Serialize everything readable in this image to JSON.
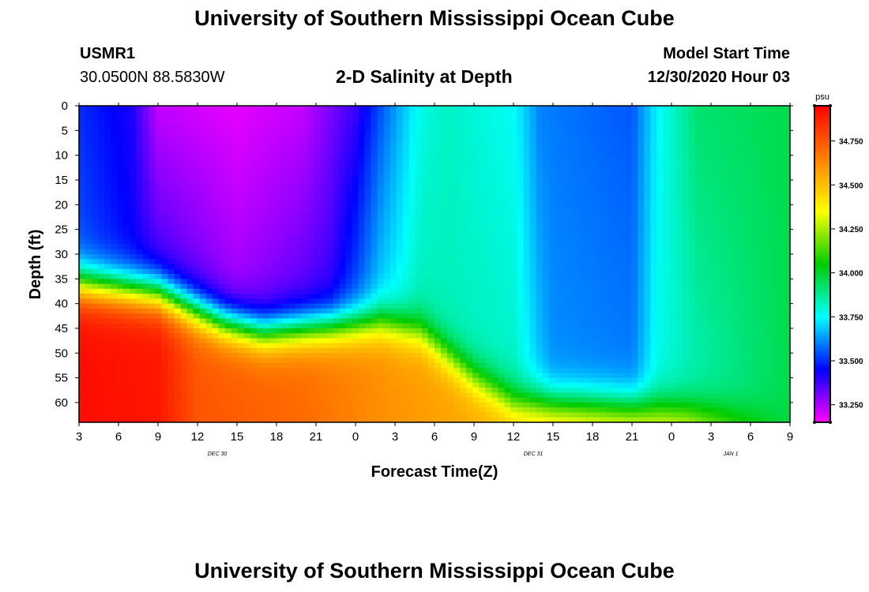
{
  "header": {
    "title": "University of Southern Mississippi Ocean Cube",
    "footer_title": "University of Southern Mississippi Ocean Cube",
    "station_id": "USMR1",
    "station_coords": "30.0500N 88.5830W",
    "model_start_label": "Model Start Time",
    "model_start_value": "12/30/2020 Hour 03"
  },
  "chart_data": {
    "type": "heatmap",
    "title": "2-D Salinity at Depth",
    "xlabel": "Forecast Time(Z)",
    "ylabel": "Depth (ft)",
    "x_tick_labels": [
      "3",
      "6",
      "9",
      "12",
      "15",
      "18",
      "21",
      "0",
      "3",
      "6",
      "9",
      "12",
      "15",
      "18",
      "21",
      "0",
      "3",
      "6",
      "9"
    ],
    "date_labels": [
      {
        "text": "DEC 30",
        "after_tick": 3
      },
      {
        "text": "DEC 31",
        "after_tick": 11
      },
      {
        "text": "JAN 1",
        "after_tick": 16
      }
    ],
    "x_range_hours": [
      3,
      57
    ],
    "y_ticks": [
      0,
      5,
      10,
      15,
      20,
      25,
      30,
      35,
      40,
      45,
      50,
      55,
      60
    ],
    "ylim": [
      0,
      64
    ],
    "colorbar": {
      "unit": "psu",
      "min": 33.15,
      "max": 34.95,
      "ticks": [
        "33.250",
        "33.500",
        "33.750",
        "34.000",
        "34.250",
        "34.500",
        "34.750"
      ],
      "tick_values": [
        33.25,
        33.5,
        33.75,
        34.0,
        34.25,
        34.5,
        34.75
      ]
    },
    "model": {
      "surface_salinity": [
        {
          "hour": 3,
          "value": 33.5
        },
        {
          "hour": 7,
          "value": 33.42
        },
        {
          "hour": 9,
          "value": 33.22
        },
        {
          "hour": 15,
          "value": 33.18
        },
        {
          "hour": 20,
          "value": 33.22
        },
        {
          "hour": 24,
          "value": 33.38
        },
        {
          "hour": 26,
          "value": 33.55
        },
        {
          "hour": 29,
          "value": 33.78
        },
        {
          "hour": 31,
          "value": 33.82
        },
        {
          "hour": 36,
          "value": 33.76
        },
        {
          "hour": 38,
          "value": 33.6
        },
        {
          "hour": 45,
          "value": 33.55
        },
        {
          "hour": 47,
          "value": 33.75
        },
        {
          "hour": 50,
          "value": 33.92
        },
        {
          "hour": 57,
          "value": 33.96
        }
      ],
      "surface_salinity_lower": [
        {
          "hour": 3,
          "value": 33.55
        },
        {
          "hour": 9,
          "value": 33.4
        },
        {
          "hour": 15,
          "value": 33.28
        },
        {
          "hour": 22,
          "value": 33.4
        },
        {
          "hour": 26,
          "value": 33.72
        },
        {
          "hour": 29,
          "value": 33.84
        },
        {
          "hour": 36,
          "value": 33.82
        },
        {
          "hour": 39,
          "value": 33.62
        },
        {
          "hour": 45,
          "value": 33.6
        },
        {
          "hour": 47,
          "value": 33.78
        },
        {
          "hour": 57,
          "value": 33.96
        }
      ],
      "halocline_depth_ft": [
        {
          "hour": 3,
          "value": 36
        },
        {
          "hour": 9,
          "value": 38
        },
        {
          "hour": 14,
          "value": 44
        },
        {
          "hour": 17,
          "value": 46
        },
        {
          "hour": 21,
          "value": 45
        },
        {
          "hour": 26,
          "value": 44
        },
        {
          "hour": 29,
          "value": 46
        },
        {
          "hour": 33,
          "value": 55
        },
        {
          "hour": 36,
          "value": 60
        },
        {
          "hour": 45,
          "value": 61
        },
        {
          "hour": 50,
          "value": 62
        },
        {
          "hour": 57,
          "value": 64
        }
      ],
      "bottom_salinity": [
        {
          "hour": 3,
          "value": 34.92
        },
        {
          "hour": 9,
          "value": 34.9
        },
        {
          "hour": 12,
          "value": 34.75
        },
        {
          "hour": 20,
          "value": 34.7
        },
        {
          "hour": 27,
          "value": 34.6
        },
        {
          "hour": 33,
          "value": 34.55
        },
        {
          "hour": 40,
          "value": 34.5
        },
        {
          "hour": 49,
          "value": 34.42
        },
        {
          "hour": 53,
          "value": 34.2
        },
        {
          "hour": 57,
          "value": 33.98
        }
      ]
    }
  }
}
